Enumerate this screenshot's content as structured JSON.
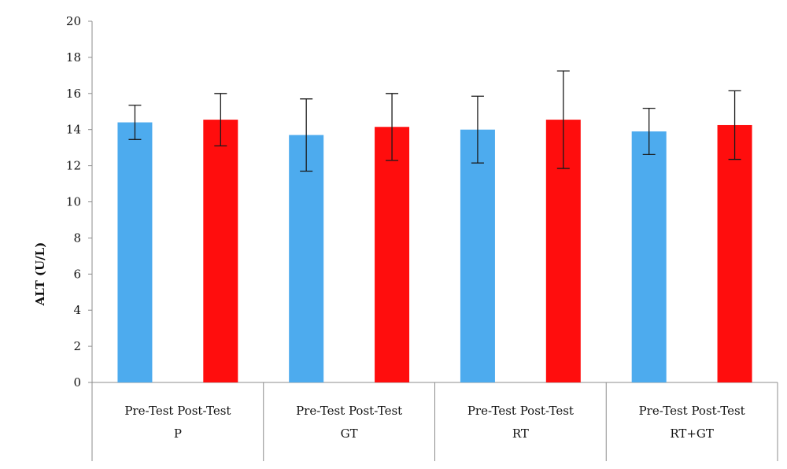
{
  "chart_data": {
    "type": "bar",
    "title": "",
    "ylabel": "ALT (U/L)",
    "xlabel": "",
    "ylim": [
      0,
      20
    ],
    "yticks": [
      0,
      2,
      4,
      6,
      8,
      10,
      12,
      14,
      16,
      18,
      20
    ],
    "grid": false,
    "groups": [
      {
        "label": "P",
        "bars": [
          {
            "category": "Pre-Test",
            "value": 14.4,
            "error": 0.95,
            "color": "#4DABEE"
          },
          {
            "category": "Post-Test",
            "value": 14.55,
            "error": 1.45,
            "color": "#FF0D0D"
          }
        ]
      },
      {
        "label": "GT",
        "bars": [
          {
            "category": "Pre-Test",
            "value": 13.7,
            "error": 2.0,
            "color": "#4DABEE"
          },
          {
            "category": "Post-Test",
            "value": 14.15,
            "error": 1.85,
            "color": "#FF0D0D"
          }
        ]
      },
      {
        "label": "RT",
        "bars": [
          {
            "category": "Pre-Test",
            "value": 14.0,
            "error": 1.85,
            "color": "#4DABEE"
          },
          {
            "category": "Post-Test",
            "value": 14.55,
            "error": 2.7,
            "color": "#FF0D0D"
          }
        ]
      },
      {
        "label": "RT+GT",
        "bars": [
          {
            "category": "Pre-Test",
            "value": 13.9,
            "error": 1.28,
            "color": "#4DABEE"
          },
          {
            "category": "Post-Test",
            "value": 14.25,
            "error": 1.9,
            "color": "#FF0D0D"
          }
        ]
      }
    ]
  }
}
